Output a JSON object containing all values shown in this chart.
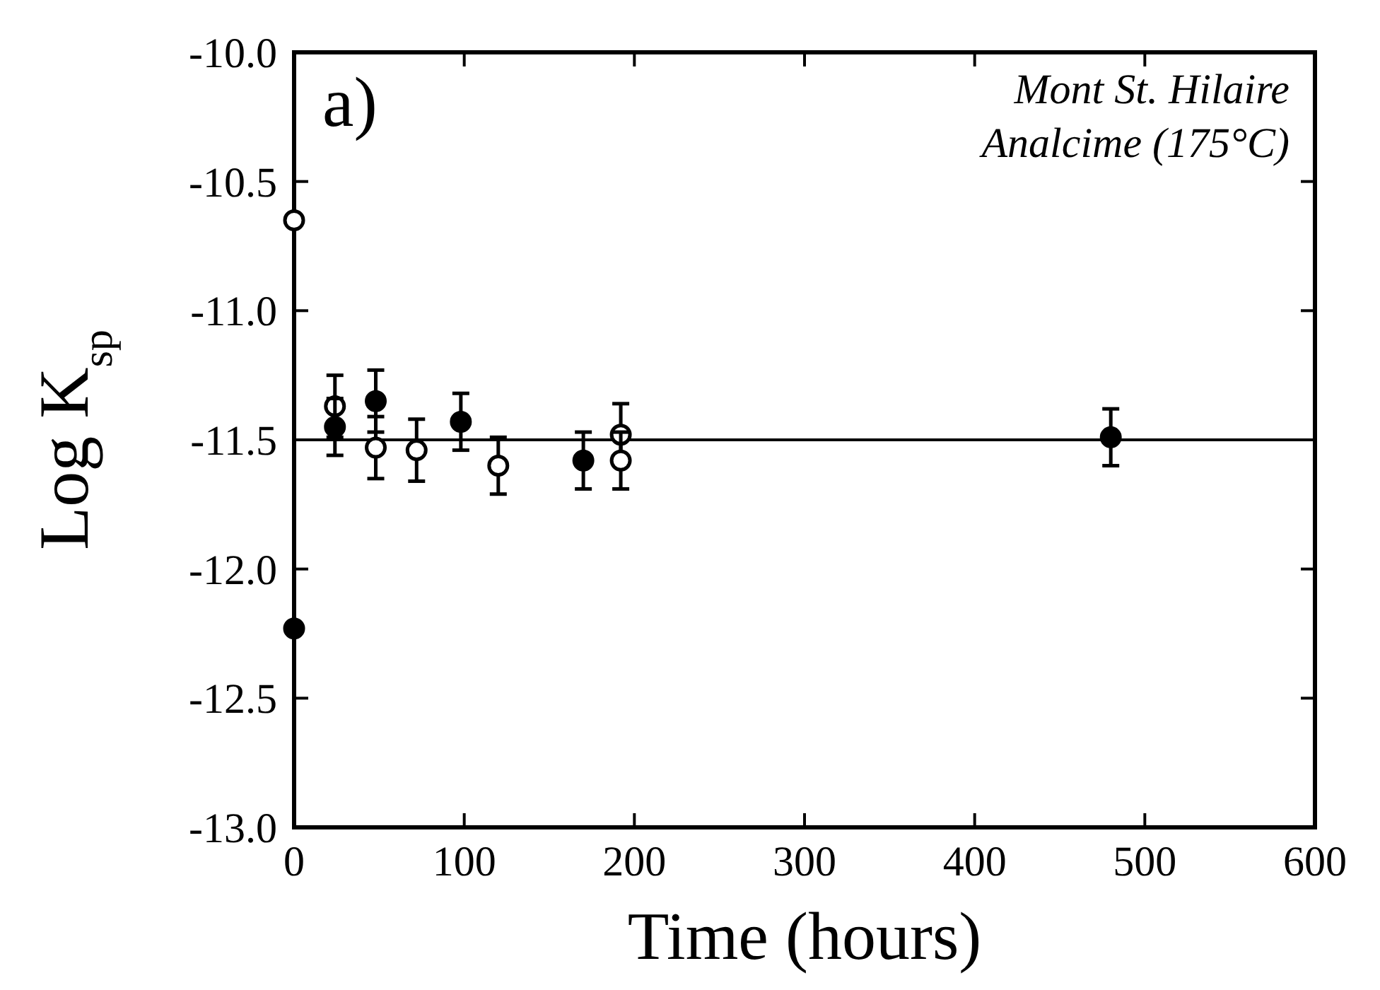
{
  "chart_data": {
    "type": "scatter",
    "xlabel": "Time (hours)",
    "ylabel": "Log K$_{sp}$",
    "annotations": [
      "a)",
      "Mont St. Hilaire",
      "Analcime (175°C)"
    ],
    "xlim": [
      0,
      600
    ],
    "xticks": [
      0,
      100,
      200,
      300,
      400,
      500,
      600
    ],
    "ylim": [
      -13,
      -10
    ],
    "yticks": [
      {
        "value": -13,
        "label": "-13.0"
      },
      {
        "value": -12.5,
        "label": "-12.5"
      },
      {
        "value": -12,
        "label": "-12.0"
      },
      {
        "value": -11.5,
        "label": "-11.5"
      },
      {
        "value": -11,
        "label": "-11.0"
      },
      {
        "value": -10.5,
        "label": "-10.5"
      },
      {
        "value": -10,
        "label": "-10.0"
      }
    ],
    "marker": "circle",
    "grid": false,
    "ref_lines": [
      {
        "axis": "y",
        "value": -11.5,
        "color": "#000000"
      }
    ],
    "series": [
      {
        "color": "#ffffff",
        "x": [
          0,
          24,
          48,
          72,
          120,
          192,
          192
        ],
        "values": [
          -10.65,
          -11.37,
          -11.53,
          -11.54,
          -11.6,
          -11.48,
          -11.58
        ],
        "errors": [
          null,
          0.12,
          0.12,
          0.12,
          0.11,
          0.12,
          0.11
        ]
      },
      {
        "color": "#000000",
        "x": [
          0,
          24,
          48,
          98,
          170,
          480
        ],
        "values": [
          -12.23,
          -11.45,
          -11.35,
          -11.43,
          -11.58,
          -11.49
        ],
        "errors": [
          null,
          0.11,
          0.12,
          0.11,
          0.11,
          0.11
        ]
      }
    ]
  }
}
